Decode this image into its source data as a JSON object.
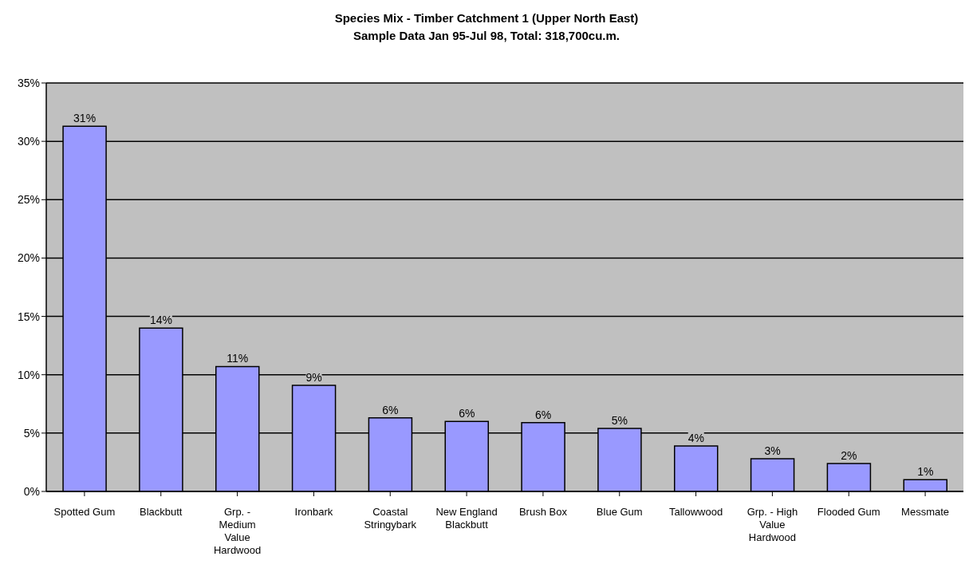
{
  "chart_data": {
    "type": "bar",
    "title": "Species Mix - Timber Catchment 1 (Upper North East)",
    "subtitle": "Sample Data Jan 95-Jul 98,  Total: 318,700cu.m.",
    "categories": [
      "Spotted Gum",
      "Blackbutt",
      "Grp. - Medium Value Hardwood",
      "Ironbark",
      "Coastal Stringybark",
      "New England Blackbutt",
      "Brush Box",
      "Blue Gum",
      "Tallowwood",
      "Grp. - High Value Hardwood",
      "Flooded Gum",
      "Messmate"
    ],
    "values": [
      31.3,
      14.0,
      10.7,
      9.1,
      6.3,
      6.0,
      5.9,
      5.4,
      3.9,
      2.8,
      2.4,
      1.0
    ],
    "value_labels": [
      "31%",
      "14%",
      "11%",
      "9%",
      "6%",
      "6%",
      "6%",
      "5%",
      "4%",
      "3%",
      "2%",
      "1%"
    ],
    "color": "#9999ff",
    "ylim": [
      0,
      35
    ],
    "yticks": [
      {
        "value": 0,
        "label": "0%"
      },
      {
        "value": 5,
        "label": "5%"
      },
      {
        "value": 10,
        "label": "10%"
      },
      {
        "value": 15,
        "label": "15%"
      },
      {
        "value": 20,
        "label": "20%"
      },
      {
        "value": 25,
        "label": "25%"
      },
      {
        "value": 30,
        "label": "30%"
      },
      {
        "value": 35,
        "label": "35%"
      }
    ],
    "grid": "y",
    "legend": false
  }
}
